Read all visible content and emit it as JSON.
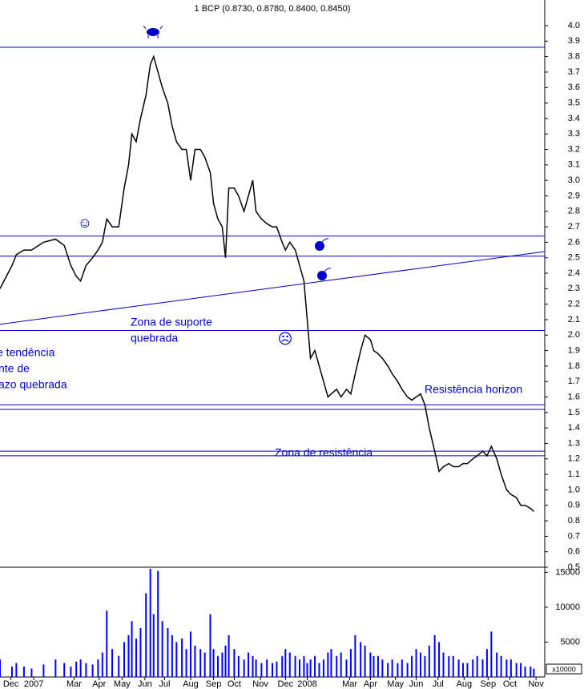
{
  "chart_data": {
    "type": "line",
    "title": "1 BCP (0.8730, 0.8780, 0.8400, 0.8450)",
    "x": [
      0,
      11,
      15,
      22,
      29,
      40,
      51,
      59,
      65,
      70,
      74,
      79,
      85,
      90,
      94,
      98,
      103,
      109,
      114,
      118,
      121,
      125,
      129,
      134,
      138,
      141,
      145,
      149,
      154,
      158,
      162,
      167,
      171,
      175,
      179,
      184,
      188,
      193,
      196,
      200,
      204,
      207,
      210,
      215,
      219,
      224,
      228,
      232,
      235,
      240,
      245,
      250,
      254,
      259,
      262,
      266,
      271,
      275,
      279,
      282,
      285,
      289,
      293,
      297,
      301,
      304,
      309,
      313,
      318,
      322,
      326,
      331,
      335,
      340,
      343,
      347,
      351,
      356,
      360,
      365,
      369,
      374,
      378,
      382,
      386,
      390,
      394,
      399,
      403,
      407,
      412,
      416,
      421,
      425,
      429,
      434,
      438,
      443,
      447,
      451,
      456,
      460,
      465,
      469,
      474,
      478,
      482,
      487,
      490
    ],
    "xlim": [
      0,
      500
    ],
    "xticks": [
      {
        "value": 10,
        "label": "Dec"
      },
      {
        "value": 31,
        "label": "2007"
      },
      {
        "value": 68,
        "label": "Mar"
      },
      {
        "value": 91,
        "label": "Apr"
      },
      {
        "value": 112,
        "label": "May"
      },
      {
        "value": 133,
        "label": "Jun"
      },
      {
        "value": 151,
        "label": "Jul"
      },
      {
        "value": 175,
        "label": "Aug"
      },
      {
        "value": 196,
        "label": "Sep"
      },
      {
        "value": 215,
        "label": "Oct"
      },
      {
        "value": 239,
        "label": "Nov"
      },
      {
        "value": 262,
        "label": "Dec"
      },
      {
        "value": 282,
        "label": "2008"
      },
      {
        "value": 321,
        "label": "Mar"
      },
      {
        "value": 340,
        "label": "Apr"
      },
      {
        "value": 363,
        "label": "May"
      },
      {
        "value": 382,
        "label": "Jun"
      },
      {
        "value": 402,
        "label": "Jul"
      },
      {
        "value": 426,
        "label": "Aug"
      },
      {
        "value": 448,
        "label": "Sep"
      },
      {
        "value": 468,
        "label": "Oct"
      },
      {
        "value": 492,
        "label": "Nov"
      }
    ],
    "series": [
      {
        "color": "#000000",
        "values": [
          2.3,
          2.45,
          2.52,
          2.55,
          2.55,
          2.6,
          2.62,
          2.58,
          2.45,
          2.38,
          2.35,
          2.45,
          2.5,
          2.55,
          2.6,
          2.75,
          2.7,
          2.7,
          2.95,
          3.1,
          3.3,
          3.25,
          3.4,
          3.55,
          3.75,
          3.8,
          3.7,
          3.6,
          3.5,
          3.35,
          3.25,
          3.2,
          3.2,
          3.0,
          3.2,
          3.2,
          3.15,
          3.05,
          2.85,
          2.75,
          2.7,
          2.5,
          2.95,
          2.95,
          2.9,
          2.8,
          2.9,
          3.0,
          2.8,
          2.75,
          2.72,
          2.7,
          2.7,
          2.6,
          2.55,
          2.6,
          2.55,
          2.45,
          2.35,
          2.1,
          1.85,
          1.9,
          1.8,
          1.7,
          1.6,
          1.62,
          1.65,
          1.6,
          1.65,
          1.62,
          1.75,
          1.9,
          2.0,
          1.97,
          1.9,
          1.88,
          1.85,
          1.8,
          1.75,
          1.7,
          1.65,
          1.6,
          1.58,
          1.6,
          1.62,
          1.55,
          1.4,
          1.25,
          1.12,
          1.15,
          1.17,
          1.15,
          1.15,
          1.17,
          1.17,
          1.2,
          1.22,
          1.25,
          1.22,
          1.28,
          1.2,
          1.1,
          1.0,
          0.97,
          0.95,
          0.9,
          0.9,
          0.88,
          0.86
        ]
      }
    ],
    "ylim": [
      0.5,
      4.0
    ],
    "yticks": [
      0.5,
      0.6,
      0.7,
      0.8,
      0.9,
      {
        "value": 1,
        "label": "1.0"
      },
      1.1,
      1.2,
      1.3,
      1.4,
      1.5,
      1.6,
      1.7,
      1.8,
      1.9,
      {
        "value": 2,
        "label": "2.0"
      },
      2.1,
      2.2,
      2.3,
      2.4,
      2.5,
      2.6,
      2.7,
      2.8,
      2.9,
      {
        "value": 3,
        "label": "3.0"
      },
      3.1,
      3.2,
      3.3,
      3.4,
      3.5,
      3.6,
      3.7,
      3.8,
      3.9,
      {
        "value": 4,
        "label": "4.0"
      }
    ],
    "hlines": [
      3.86,
      2.64,
      2.51,
      2.03,
      1.55,
      1.52,
      1.25,
      1.22
    ],
    "trendline": {
      "x": [
        0,
        500
      ],
      "values": [
        2.07,
        2.54
      ]
    },
    "line_color": "#0000cc",
    "annotations": [
      "Zona de suporte",
      "quebrada",
      "e tendência",
      "nte de",
      "azo quebrada",
      "Resistência horizon",
      "Zona de resistência"
    ],
    "volume": {
      "type": "bar",
      "color": "#0000ff",
      "unit_label": "x10000",
      "values": [
        2500,
        1500,
        2000,
        1500,
        1200,
        1800,
        2500,
        2000,
        1500,
        2200,
        2500,
        2000,
        1800,
        2500,
        3500,
        9500,
        4000,
        3000,
        5000,
        6000,
        8000,
        5500,
        7000,
        12000,
        15500,
        9000,
        15200,
        8000,
        7000,
        6000,
        5000,
        5500,
        4000,
        6500,
        4500,
        4000,
        3500,
        9000,
        4000,
        3000,
        3500,
        4500,
        6000,
        4000,
        3000,
        2500,
        3500,
        3000,
        2500,
        2000,
        2500,
        2000,
        2200,
        3000,
        4000,
        3500,
        3000,
        2500,
        3000,
        2000,
        2500,
        3000,
        2000,
        2500,
        3500,
        4000,
        3000,
        3500,
        2500,
        4000,
        6000,
        5000,
        4500,
        3500,
        3000,
        3000,
        2500,
        2000,
        2500,
        2000,
        2500,
        2000,
        3000,
        4000,
        3500,
        3000,
        4500,
        6000,
        5000,
        3500,
        3000,
        3000,
        2500,
        2000,
        2000,
        2500,
        3000,
        2500,
        4000,
        6500,
        3500,
        3000,
        2500,
        2500,
        2000,
        2000,
        1500,
        1500,
        1200
      ],
      "ylim": [
        0,
        15500
      ],
      "yticks": [
        5000,
        10000,
        15000
      ]
    }
  }
}
